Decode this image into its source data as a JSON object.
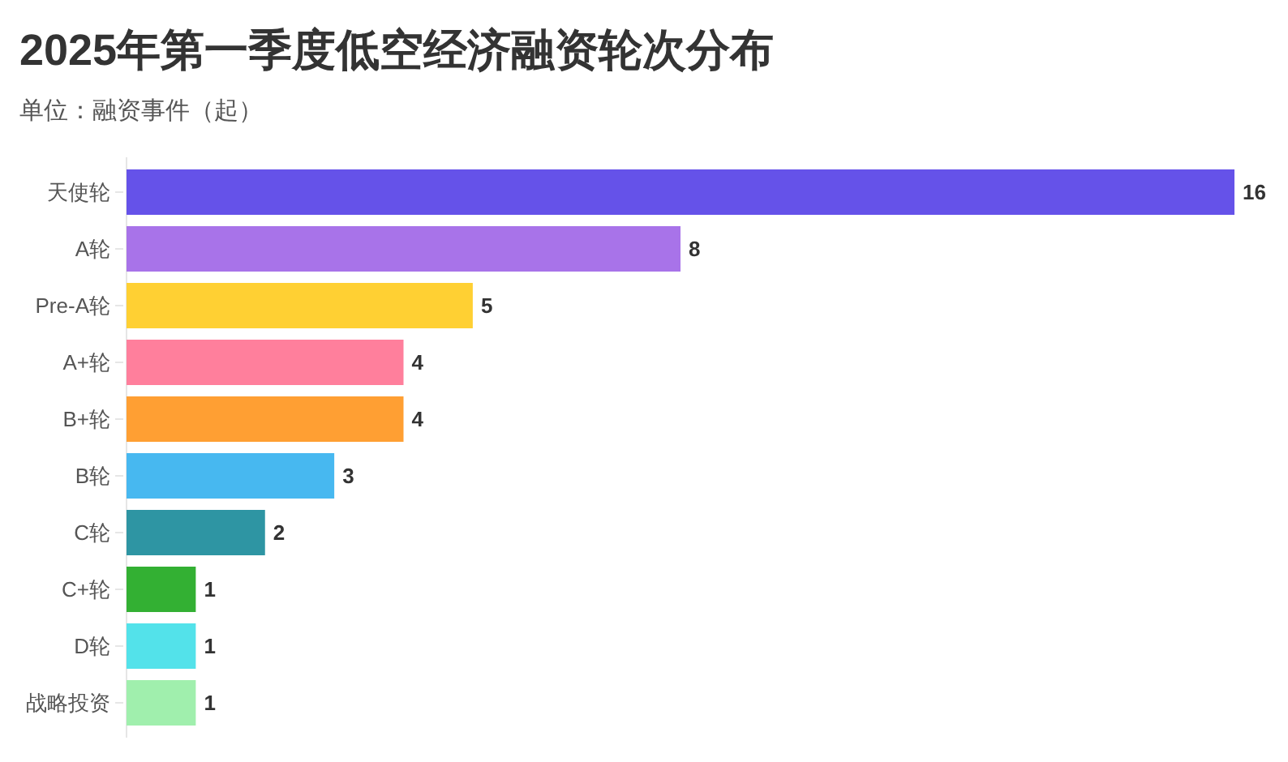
{
  "chart_data": {
    "type": "bar",
    "orientation": "horizontal",
    "title": "2025年第一季度低空经济融资轮次分布",
    "subtitle": "单位：融资事件（起）",
    "categories": [
      "天使轮",
      "A轮",
      "Pre-A轮",
      "A+轮",
      "B+轮",
      "B轮",
      "C轮",
      "C+轮",
      "D轮",
      "战略投资"
    ],
    "values": [
      16,
      8,
      5,
      4,
      4,
      3,
      2,
      1,
      1,
      1
    ],
    "colors": [
      "#6552e9",
      "#a873e9",
      "#ffd033",
      "#ff7f9c",
      "#ff9f33",
      "#47b8f0",
      "#2e95a3",
      "#33b033",
      "#53e2ea",
      "#a0efad"
    ],
    "data_labels": true
  }
}
